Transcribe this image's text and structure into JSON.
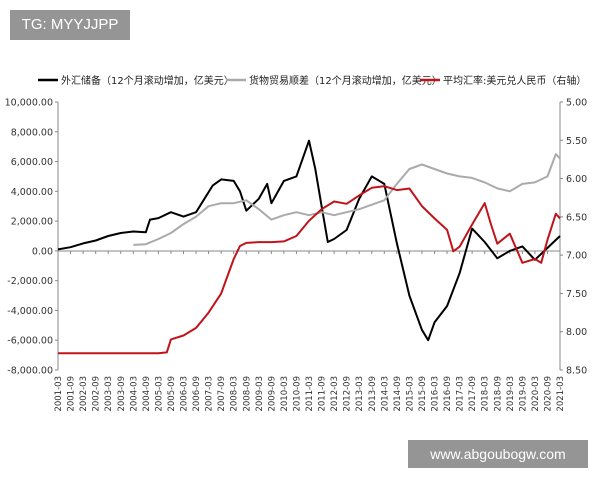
{
  "watermark_top": "TG: MYYJJPP",
  "watermark_bottom": "www.abgoubogw.com",
  "chart_data": {
    "type": "line",
    "title": "",
    "x_ticks": [
      "2001-03",
      "2001-09",
      "2002-03",
      "2002-09",
      "2003-03",
      "2003-09",
      "2004-03",
      "2004-09",
      "2005-03",
      "2005-09",
      "2006-03",
      "2006-09",
      "2007-03",
      "2007-09",
      "2008-03",
      "2008-09",
      "2009-03",
      "2009-09",
      "2010-03",
      "2010-09",
      "2011-03",
      "2011-09",
      "2012-03",
      "2012-09",
      "2013-03",
      "2013-09",
      "2014-03",
      "2014-09",
      "2015-03",
      "2015-09",
      "2016-03",
      "2016-09",
      "2017-03",
      "2017-09",
      "2018-03",
      "2018-09",
      "2019-03",
      "2019-09",
      "2020-03",
      "2020-09",
      "2021-03"
    ],
    "left_axis": {
      "ylim": [
        -8000,
        10000
      ],
      "ticks": [
        10000,
        8000,
        6000,
        4000,
        2000,
        0,
        -2000,
        -4000,
        -6000,
        -8000
      ],
      "tick_labels": [
        "10,000.00",
        "8,000.00",
        "6,000.00",
        "4,000.00",
        "2,000.00",
        "0.00",
        "-2,000.00",
        "-4,000.00",
        "-6,000.00",
        "-8,000.00"
      ]
    },
    "right_axis": {
      "ylim": [
        5.0,
        8.5
      ],
      "inverted": true,
      "ticks": [
        5.0,
        5.5,
        6.0,
        6.5,
        7.0,
        7.5,
        8.0,
        8.5
      ],
      "tick_labels": [
        "5.00",
        "5.50",
        "6.00",
        "6.50",
        "7.00",
        "7.50",
        "8.00",
        "8.50"
      ]
    },
    "grid": false,
    "legend_position": "top",
    "series": [
      {
        "name": "外汇储备（12个月滚动增加，亿美元）",
        "axis": "left",
        "color": "#000000",
        "points": [
          [
            "2001-03",
            100
          ],
          [
            "2001-09",
            250
          ],
          [
            "2002-03",
            500
          ],
          [
            "2002-09",
            700
          ],
          [
            "2003-03",
            1000
          ],
          [
            "2003-09",
            1200
          ],
          [
            "2004-03",
            1300
          ],
          [
            "2004-09",
            1250
          ],
          [
            "2004-11",
            2100
          ],
          [
            "2005-03",
            2200
          ],
          [
            "2005-09",
            2600
          ],
          [
            "2006-03",
            2300
          ],
          [
            "2006-09",
            2600
          ],
          [
            "2007-01",
            3500
          ],
          [
            "2007-05",
            4400
          ],
          [
            "2007-09",
            4800
          ],
          [
            "2008-03",
            4700
          ],
          [
            "2008-06",
            4000
          ],
          [
            "2008-09",
            2700
          ],
          [
            "2009-03",
            3500
          ],
          [
            "2009-07",
            4500
          ],
          [
            "2009-09",
            3200
          ],
          [
            "2010-03",
            4700
          ],
          [
            "2010-09",
            5000
          ],
          [
            "2011-03",
            7400
          ],
          [
            "2011-06",
            5500
          ],
          [
            "2011-09",
            3000
          ],
          [
            "2011-12",
            600
          ],
          [
            "2012-03",
            800
          ],
          [
            "2012-09",
            1400
          ],
          [
            "2013-03",
            3500
          ],
          [
            "2013-09",
            5000
          ],
          [
            "2014-03",
            4500
          ],
          [
            "2014-06",
            2500
          ],
          [
            "2014-09",
            500
          ],
          [
            "2015-03",
            -3000
          ],
          [
            "2015-09",
            -5300
          ],
          [
            "2015-12",
            -6000
          ],
          [
            "2016-03",
            -4800
          ],
          [
            "2016-09",
            -3700
          ],
          [
            "2017-03",
            -1500
          ],
          [
            "2017-09",
            1500
          ],
          [
            "2018-03",
            600
          ],
          [
            "2018-09",
            -500
          ],
          [
            "2019-03",
            0
          ],
          [
            "2019-09",
            300
          ],
          [
            "2020-03",
            -600
          ],
          [
            "2020-09",
            200
          ],
          [
            "2021-03",
            1000
          ]
        ]
      },
      {
        "name": "货物贸易顺差（12个月滚动增加，亿美元）",
        "axis": "left",
        "color": "#aaaaaa",
        "points": [
          [
            "2004-03",
            400
          ],
          [
            "2004-09",
            450
          ],
          [
            "2005-03",
            800
          ],
          [
            "2005-09",
            1200
          ],
          [
            "2006-03",
            1800
          ],
          [
            "2006-09",
            2300
          ],
          [
            "2007-03",
            3000
          ],
          [
            "2007-09",
            3200
          ],
          [
            "2008-03",
            3200
          ],
          [
            "2008-09",
            3400
          ],
          [
            "2009-03",
            2800
          ],
          [
            "2009-09",
            2100
          ],
          [
            "2010-03",
            2400
          ],
          [
            "2010-09",
            2600
          ],
          [
            "2011-03",
            2400
          ],
          [
            "2011-09",
            2600
          ],
          [
            "2012-03",
            2400
          ],
          [
            "2012-09",
            2600
          ],
          [
            "2013-03",
            2800
          ],
          [
            "2013-09",
            3100
          ],
          [
            "2014-03",
            3400
          ],
          [
            "2014-09",
            4500
          ],
          [
            "2015-03",
            5500
          ],
          [
            "2015-09",
            5800
          ],
          [
            "2016-03",
            5500
          ],
          [
            "2016-09",
            5200
          ],
          [
            "2017-03",
            5000
          ],
          [
            "2017-09",
            4900
          ],
          [
            "2018-03",
            4600
          ],
          [
            "2018-09",
            4200
          ],
          [
            "2019-03",
            4000
          ],
          [
            "2019-09",
            4500
          ],
          [
            "2020-03",
            4600
          ],
          [
            "2020-09",
            5000
          ],
          [
            "2021-01",
            6500
          ],
          [
            "2021-03",
            6200
          ]
        ]
      },
      {
        "name": "平均汇率:美元兑人民币（右轴）",
        "axis": "right",
        "color": "#c0141b",
        "points": [
          [
            "2001-03",
            8.28
          ],
          [
            "2004-09",
            8.28
          ],
          [
            "2005-03",
            8.28
          ],
          [
            "2005-07",
            8.27
          ],
          [
            "2005-09",
            8.1
          ],
          [
            "2006-03",
            8.05
          ],
          [
            "2006-09",
            7.95
          ],
          [
            "2007-03",
            7.75
          ],
          [
            "2007-09",
            7.5
          ],
          [
            "2008-03",
            7.05
          ],
          [
            "2008-06",
            6.88
          ],
          [
            "2008-09",
            6.84
          ],
          [
            "2009-03",
            6.83
          ],
          [
            "2009-09",
            6.83
          ],
          [
            "2010-03",
            6.82
          ],
          [
            "2010-09",
            6.75
          ],
          [
            "2011-03",
            6.55
          ],
          [
            "2011-09",
            6.4
          ],
          [
            "2012-03",
            6.3
          ],
          [
            "2012-09",
            6.33
          ],
          [
            "2013-03",
            6.22
          ],
          [
            "2013-09",
            6.12
          ],
          [
            "2014-03",
            6.1
          ],
          [
            "2014-09",
            6.15
          ],
          [
            "2015-03",
            6.13
          ],
          [
            "2015-09",
            6.36
          ],
          [
            "2016-03",
            6.52
          ],
          [
            "2016-09",
            6.67
          ],
          [
            "2016-12",
            6.95
          ],
          [
            "2017-03",
            6.89
          ],
          [
            "2017-09",
            6.6
          ],
          [
            "2018-03",
            6.32
          ],
          [
            "2018-06",
            6.6
          ],
          [
            "2018-09",
            6.85
          ],
          [
            "2019-03",
            6.72
          ],
          [
            "2019-09",
            7.1
          ],
          [
            "2020-03",
            7.05
          ],
          [
            "2020-06",
            7.1
          ],
          [
            "2020-09",
            6.8
          ],
          [
            "2021-01",
            6.46
          ],
          [
            "2021-03",
            6.52
          ]
        ]
      }
    ]
  }
}
